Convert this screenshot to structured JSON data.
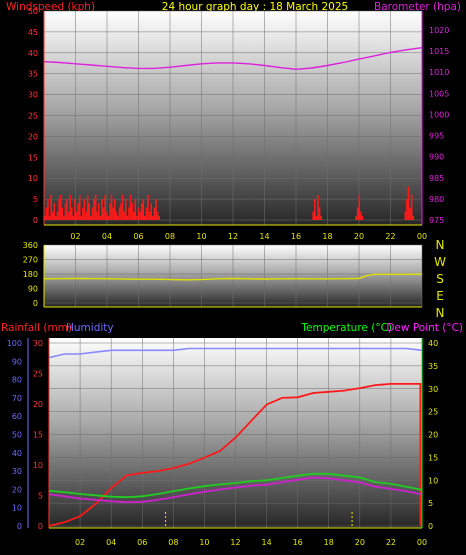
{
  "header": {
    "left": "Windspeed (kph)",
    "center": "24 hour graph day : 18 March 2025",
    "right": "Barometer (hpa)"
  },
  "colors": {
    "wind": "#ff1a1a",
    "baro": "#dd22dd",
    "dir": "#e0e000",
    "rain": "#ff1a1a",
    "hum": "#8888ff",
    "temp": "#22cc22",
    "dew": "#cc22cc",
    "axis_title_title_temp": "#00ff00",
    "tick_red": "#ff3333",
    "tick_mag": "#dd22dd",
    "tick_yel": "#e6e600",
    "tick_blue": "#6b6bff"
  },
  "chart_data": [
    {
      "type": "bar",
      "title": "24 hour graph day : 18 March 2025",
      "series": [
        {
          "name": "Windspeed (kph)",
          "axis": "left",
          "ylim": [
            0,
            50
          ],
          "ticks": [
            "0",
            "5",
            "10",
            "15",
            "20",
            "25",
            "30",
            "35",
            "40",
            "45",
            "50"
          ],
          "values": [
            1,
            3,
            5,
            1,
            6,
            2,
            4,
            1,
            2,
            5,
            6,
            3,
            1,
            4,
            5,
            2,
            6,
            3,
            1,
            5,
            2,
            4,
            6,
            1,
            3,
            5,
            2,
            6,
            4,
            1,
            3,
            5,
            6,
            2,
            4,
            1,
            5,
            3,
            6,
            2,
            1,
            4,
            6,
            3,
            5,
            2,
            1,
            3,
            4,
            6,
            2,
            5,
            1,
            3,
            6,
            4,
            2,
            5,
            1,
            3,
            2,
            4,
            5,
            1,
            3,
            6,
            2,
            4,
            1,
            3,
            5,
            2,
            1,
            0,
            0,
            0,
            0,
            0,
            0,
            0,
            0,
            0,
            0,
            0,
            0,
            0,
            0,
            0,
            0,
            0,
            0,
            0,
            0,
            0,
            0,
            0,
            0,
            0,
            0,
            0,
            0,
            0,
            0,
            0,
            0,
            0,
            0,
            0,
            0,
            0,
            0,
            0,
            0,
            0,
            0,
            0,
            0,
            0,
            0,
            0,
            0,
            0,
            0,
            0,
            0,
            0,
            0,
            0,
            0,
            0,
            0,
            0,
            0,
            0,
            0,
            0,
            0,
            0,
            0,
            0,
            0,
            0,
            0,
            0,
            0,
            0,
            0,
            0,
            0,
            0,
            0,
            0,
            0,
            0,
            0,
            0,
            0,
            0,
            0,
            0,
            0,
            0,
            0,
            0,
            0,
            0,
            0,
            0,
            0,
            2,
            5,
            1,
            6,
            3,
            1,
            0,
            0,
            0,
            0,
            0,
            0,
            0,
            0,
            0,
            0,
            0,
            0,
            0,
            0,
            0,
            0,
            0,
            0,
            0,
            0,
            0,
            1,
            3,
            6,
            2,
            1,
            0,
            0,
            0,
            0,
            0,
            0,
            0,
            0,
            0,
            0,
            0,
            0,
            0,
            0,
            0,
            0,
            0,
            0,
            0,
            0,
            0,
            0,
            0,
            0,
            0,
            0,
            2,
            5,
            8,
            3,
            6,
            1,
            0,
            0,
            0,
            0,
            0
          ]
        },
        {
          "name": "Barometer (hpa)",
          "axis": "right",
          "ylim": [
            975,
            1020
          ],
          "ticks": [
            "975",
            "980",
            "985",
            "990",
            "995",
            "1000",
            "1005",
            "1010",
            "1015",
            "1020"
          ],
          "x": [
            0,
            1,
            2,
            3,
            4,
            5,
            6,
            7,
            8,
            9,
            10,
            11,
            12,
            13,
            14,
            15,
            16,
            17,
            18,
            19,
            20,
            21,
            22,
            23,
            24
          ],
          "values": [
            1012.5,
            1012.3,
            1012.0,
            1011.7,
            1011.4,
            1011.1,
            1010.9,
            1010.9,
            1011.2,
            1011.6,
            1012.0,
            1012.2,
            1012.2,
            1012.0,
            1011.6,
            1011.1,
            1010.7,
            1011.0,
            1011.6,
            1012.3,
            1013.1,
            1013.9,
            1014.7,
            1015.3,
            1015.8
          ]
        }
      ],
      "xticks": [
        "02",
        "04",
        "06",
        "08",
        "10",
        "12",
        "14",
        "16",
        "18",
        "20",
        "22",
        "00"
      ]
    },
    {
      "type": "line",
      "series": [
        {
          "name": "Wind direction",
          "ylim": [
            0,
            360
          ],
          "ticks": [
            "0",
            "90",
            "180",
            "270",
            "360"
          ],
          "x": [
            0,
            2,
            4,
            6,
            7,
            8,
            9,
            10,
            11,
            12,
            13,
            14,
            15,
            16,
            17,
            18,
            19,
            20,
            20.5,
            21,
            22,
            23,
            24
          ],
          "values": [
            150,
            152,
            151,
            148,
            148,
            145,
            144,
            145,
            150,
            152,
            150,
            149,
            150,
            151,
            150,
            150,
            151,
            152,
            170,
            178,
            178,
            178,
            179
          ]
        }
      ],
      "compass": [
        "N",
        "W",
        "S",
        "E",
        "N"
      ]
    },
    {
      "type": "line",
      "axes": {
        "left_outer": {
          "title": "Rainfall (mm)",
          "ylim": [
            0,
            100
          ],
          "ticks": [
            "0",
            "10",
            "20",
            "30",
            "40",
            "50",
            "60",
            "70",
            "80",
            "90",
            "100"
          ]
        },
        "left_inner": {
          "title": "Humidity",
          "ylim": [
            0,
            30
          ],
          "ticks": [
            "0",
            "5",
            "10",
            "15",
            "20",
            "25",
            "30"
          ]
        },
        "right_inner": {
          "title": "Temperature (°C)",
          "ylim": [
            0,
            40
          ],
          "ticks": [
            "0",
            "5",
            "10",
            "15",
            "20",
            "25",
            "30",
            "35",
            "40"
          ]
        },
        "right_outer": {
          "title": "Dew Point (°C)"
        }
      },
      "series": [
        {
          "name": "Rainfall (mm)",
          "axis": "left_inner",
          "ylim": [
            0,
            30
          ],
          "x": [
            0,
            1,
            2,
            3,
            4,
            5,
            6,
            7,
            8,
            9,
            10,
            11,
            12,
            13,
            14,
            15,
            16,
            17,
            18,
            19,
            20,
            21,
            22,
            23,
            24
          ],
          "values": [
            0,
            0.6,
            1.6,
            3.6,
            6.2,
            8.3,
            8.7,
            9.0,
            9.5,
            10.2,
            11.2,
            12.3,
            14.5,
            17.2,
            19.9,
            21.0,
            21.1,
            21.8,
            22.0,
            22.2,
            22.6,
            23.1,
            23.3,
            23.3,
            0
          ]
        },
        {
          "name": "Humidity",
          "axis": "left_outer",
          "ylim": [
            0,
            100
          ],
          "x": [
            0,
            1,
            2,
            3,
            4,
            5,
            6,
            7,
            8,
            9,
            10,
            11,
            12,
            13,
            14,
            15,
            16,
            17,
            18,
            19,
            20,
            21,
            22,
            23,
            24
          ],
          "values": [
            92,
            94,
            94,
            95,
            96,
            96,
            96,
            96,
            96,
            97,
            97,
            97,
            97,
            97,
            97,
            97,
            97,
            97,
            97,
            97,
            97,
            97,
            97,
            97,
            96
          ]
        },
        {
          "name": "Temperature (°C)",
          "axis": "right_inner",
          "ylim": [
            0,
            40
          ],
          "x": [
            0,
            1,
            2,
            3,
            4,
            5,
            6,
            7,
            8,
            9,
            10,
            11,
            12,
            13,
            14,
            15,
            16,
            17,
            18,
            19,
            20,
            21,
            22,
            23,
            24
          ],
          "values": [
            7.7,
            7.4,
            7.0,
            6.7,
            6.4,
            6.3,
            6.5,
            7.0,
            7.6,
            8.2,
            8.7,
            9.1,
            9.4,
            9.8,
            10.0,
            10.5,
            11.0,
            11.4,
            11.4,
            11.0,
            10.6,
            9.6,
            9.2,
            8.6,
            7.9
          ]
        },
        {
          "name": "Dew Point (°C)",
          "axis": "right_inner",
          "ylim": [
            0,
            40
          ],
          "x": [
            0,
            1,
            2,
            3,
            4,
            5,
            6,
            7,
            8,
            9,
            10,
            11,
            12,
            13,
            14,
            15,
            16,
            17,
            18,
            19,
            20,
            21,
            22,
            23,
            24
          ],
          "values": [
            6.9,
            6.5,
            6.0,
            5.7,
            5.4,
            5.2,
            5.3,
            5.7,
            6.3,
            6.9,
            7.5,
            8.0,
            8.4,
            8.8,
            9.0,
            9.6,
            10.1,
            10.6,
            10.4,
            10.0,
            9.5,
            8.6,
            8.1,
            7.6,
            6.9
          ]
        }
      ],
      "xticks": [
        "02",
        "04",
        "06",
        "08",
        "10",
        "12",
        "14",
        "16",
        "18",
        "20",
        "22",
        "00"
      ]
    }
  ]
}
